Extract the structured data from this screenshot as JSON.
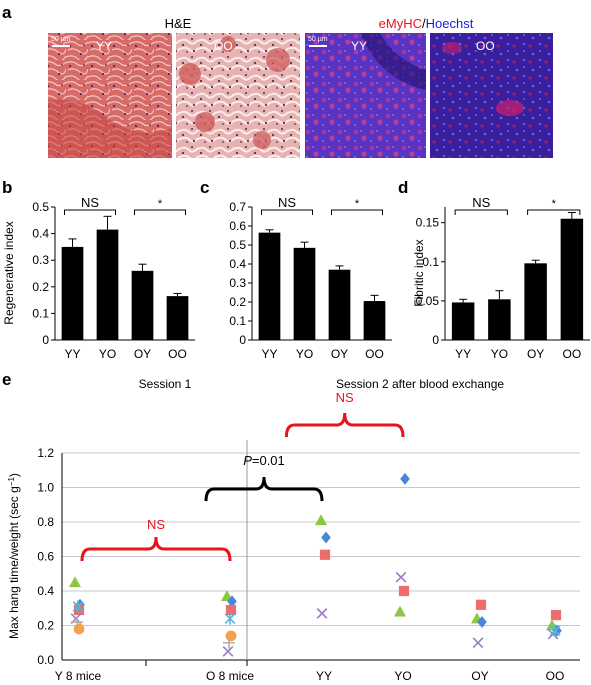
{
  "panel_letters": {
    "a": "a",
    "b": "b",
    "c": "c",
    "d": "d",
    "e": "e"
  },
  "panel_a": {
    "he_title": "H&E",
    "if_title_red": "eMyHC",
    "if_title_sep": "/",
    "if_title_blue": "Hoechst",
    "scalebar_he": "50 µm",
    "scalebar_if": "50 µm",
    "images": [
      {
        "label": "YY",
        "style": "he-yy"
      },
      {
        "label": "OO",
        "style": "he-oo"
      },
      {
        "label": "YY",
        "style": "if-yy"
      },
      {
        "label": "OO",
        "style": "if-oo"
      }
    ],
    "colors": {
      "he_pink": "#d9736f",
      "he_dark": "#8e2b3c",
      "if_blue": "#4a2ab8",
      "if_red": "#e4206a"
    }
  },
  "chart_data": [
    {
      "id": "b",
      "type": "bar",
      "categories": [
        "YY",
        "YO",
        "OY",
        "OO"
      ],
      "values": [
        0.35,
        0.415,
        0.26,
        0.165
      ],
      "errors": [
        0.03,
        0.05,
        0.025,
        0.01
      ],
      "ylabel": "Regenerative index",
      "ylim": [
        0,
        0.5
      ],
      "yticks": [
        "0",
        "0.1",
        "0.2",
        "0.3",
        "0.4",
        "0.5"
      ],
      "annotations": [
        {
          "text": "NS",
          "from": 0,
          "to": 1
        },
        {
          "text": "*",
          "from": 2,
          "to": 3
        }
      ]
    },
    {
      "id": "c",
      "type": "bar",
      "categories": [
        "YY",
        "YO",
        "OY",
        "OO"
      ],
      "values": [
        0.565,
        0.485,
        0.37,
        0.205
      ],
      "errors": [
        0.015,
        0.03,
        0.02,
        0.03
      ],
      "ylabel": "",
      "ylim": [
        0,
        0.7
      ],
      "yticks": [
        "0",
        "0.1",
        "0.2",
        "0.3",
        "0.4",
        "0.5",
        "0.6",
        "0.7"
      ],
      "annotations": [
        {
          "text": "NS",
          "from": 0,
          "to": 1
        },
        {
          "text": "*",
          "from": 2,
          "to": 3
        }
      ]
    },
    {
      "id": "d",
      "type": "bar",
      "categories": [
        "YY",
        "YO",
        "OY",
        "OO"
      ],
      "values": [
        0.048,
        0.052,
        0.098,
        0.155
      ],
      "errors": [
        0.004,
        0.011,
        0.004,
        0.008
      ],
      "ylabel": "Fibritic index",
      "ylim": [
        0,
        0.17
      ],
      "yticks": [
        "0",
        "0.05",
        "0.1",
        "0.15"
      ],
      "annotations": [
        {
          "text": "NS",
          "from": 0,
          "to": 1
        },
        {
          "text": "*",
          "from": 2,
          "to": 3
        }
      ]
    },
    {
      "id": "e",
      "type": "scatter",
      "categories": [
        "Y 8 mice",
        "O 8 mice",
        "YY",
        "YO",
        "OY",
        "OO"
      ],
      "ylabel": "Max hang time/weight (sec g",
      "ylabel_sup": "−1",
      "ylabel_end": ")",
      "ylim": [
        0,
        1.2
      ],
      "yticks": [
        "0.0",
        "0.2",
        "0.4",
        "0.6",
        "0.8",
        "1.0",
        "1.2"
      ],
      "grid": true,
      "session1": "Session 1",
      "session2": "Session 2 after blood exchange",
      "brackets": [
        {
          "label": "NS",
          "from": 0,
          "to": 1,
          "color": "#e8141c"
        },
        {
          "label_italic": "P",
          "label_rest": "=0.01",
          "from": 1,
          "to": 2,
          "color": "#000000"
        },
        {
          "label": "NS",
          "from": 1.6,
          "to": 3,
          "color": "#e8141c"
        }
      ],
      "series": [
        {
          "marker": "triangle",
          "color": "#8dc63f",
          "points": [
            [
              0,
              0.45
            ],
            [
              1,
              0.37
            ],
            [
              2,
              0.81
            ],
            [
              3,
              0.28
            ],
            [
              4,
              0.24
            ],
            [
              5,
              0.2
            ]
          ]
        },
        {
          "marker": "diamond",
          "color": "#4a86d6",
          "points": [
            [
              0,
              0.32
            ],
            [
              1,
              0.34
            ],
            [
              2,
              0.71
            ],
            [
              3,
              1.05
            ],
            [
              4,
              0.22
            ],
            [
              5,
              0.17
            ]
          ]
        },
        {
          "marker": "square",
          "color": "#ef6c6c",
          "points": [
            [
              0,
              0.29
            ],
            [
              1,
              0.29
            ],
            [
              2,
              0.61
            ],
            [
              3,
              0.4
            ],
            [
              4,
              0.32
            ],
            [
              5,
              0.26
            ]
          ]
        },
        {
          "marker": "cross",
          "color": "#9b7cc4",
          "points": [
            [
              0,
              0.24
            ],
            [
              1,
              0.05
            ],
            [
              2,
              0.27
            ],
            [
              3,
              0.48
            ],
            [
              4,
              0.1
            ],
            [
              5,
              0.15
            ]
          ]
        },
        {
          "marker": "star",
          "color": "#4fb8d9",
          "points": [
            [
              0,
              0.31
            ],
            [
              1,
              0.24
            ],
            [
              5,
              0.17
            ]
          ]
        },
        {
          "marker": "circle",
          "color": "#f7a04a",
          "points": [
            [
              0,
              0.18
            ],
            [
              1,
              0.14
            ]
          ]
        },
        {
          "marker": "plus",
          "color": "#b0b0b0",
          "points": [
            [
              0,
              0.22
            ],
            [
              1,
              0.1
            ]
          ]
        }
      ]
    }
  ]
}
